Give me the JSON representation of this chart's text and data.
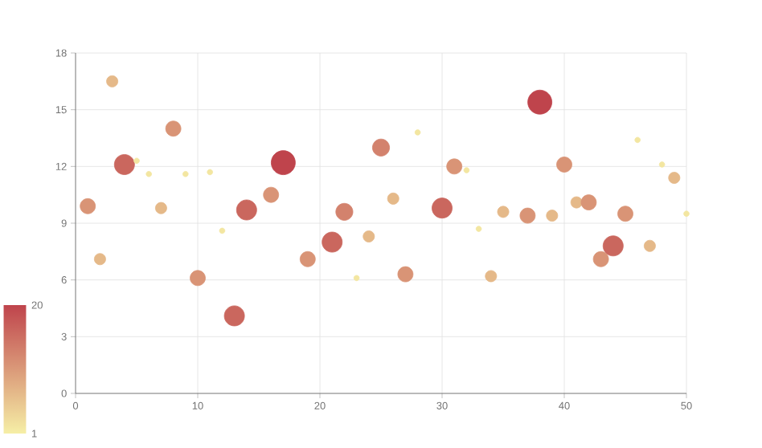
{
  "chart_data": {
    "type": "scatter",
    "marker": "circle",
    "grid": true,
    "xlim": [
      0,
      50
    ],
    "xticks": [
      0,
      10,
      20,
      30,
      40,
      50
    ],
    "ylim": [
      0,
      18
    ],
    "yticks": [
      0,
      3,
      6,
      9,
      12,
      15,
      18
    ],
    "clim": [
      1,
      20
    ],
    "cticks": [
      1,
      20
    ],
    "x": [
      1,
      2,
      3,
      4,
      5,
      6,
      7,
      8,
      9,
      10,
      11,
      12,
      13,
      14,
      16,
      17,
      19,
      21,
      22,
      23,
      24,
      25,
      26,
      27,
      28,
      30,
      31,
      32,
      33,
      34,
      35,
      37,
      38,
      39,
      40,
      41,
      42,
      43,
      44,
      45,
      46,
      47,
      48,
      49,
      50
    ],
    "values": [
      9.9,
      7.1,
      16.5,
      12.1,
      12.3,
      11.6,
      9.8,
      14,
      11.6,
      6.1,
      11.7,
      8.6,
      4.1,
      9.7,
      10.5,
      12.2,
      7.1,
      8,
      9.6,
      6.1,
      8.3,
      13,
      10.3,
      6.3,
      13.8,
      9.8,
      12,
      11.8,
      8.7,
      6.2,
      9.6,
      9.4,
      15.4,
      9.4,
      12.1,
      10.1,
      10.1,
      7.1,
      7.8,
      9.5,
      13.4,
      7.8,
      12.1,
      11.4,
      9.5
    ],
    "cvalues": [
      11,
      7,
      7,
      16,
      2,
      2,
      7,
      11,
      2,
      11,
      2,
      2,
      16,
      16,
      11,
      20,
      11,
      16,
      13,
      2,
      7,
      13,
      7,
      11,
      2,
      16,
      11,
      2,
      2,
      7,
      7,
      11,
      20,
      7,
      11,
      7,
      11,
      11,
      16,
      11,
      2,
      7,
      2,
      7,
      2
    ],
    "sizes": [
      0.4,
      0.22,
      0.22,
      0.7,
      0.05,
      0.05,
      0.22,
      0.4,
      0.05,
      0.4,
      0.05,
      0.05,
      0.7,
      0.7,
      0.4,
      1,
      0.4,
      0.7,
      0.5,
      0.05,
      0.22,
      0.5,
      0.22,
      0.4,
      0.05,
      0.7,
      0.4,
      0.05,
      0.05,
      0.22,
      0.22,
      0.4,
      1,
      0.22,
      0.4,
      0.22,
      0.4,
      0.4,
      0.7,
      0.4,
      0.05,
      0.22,
      0.05,
      0.22,
      0.05
    ]
  }
}
